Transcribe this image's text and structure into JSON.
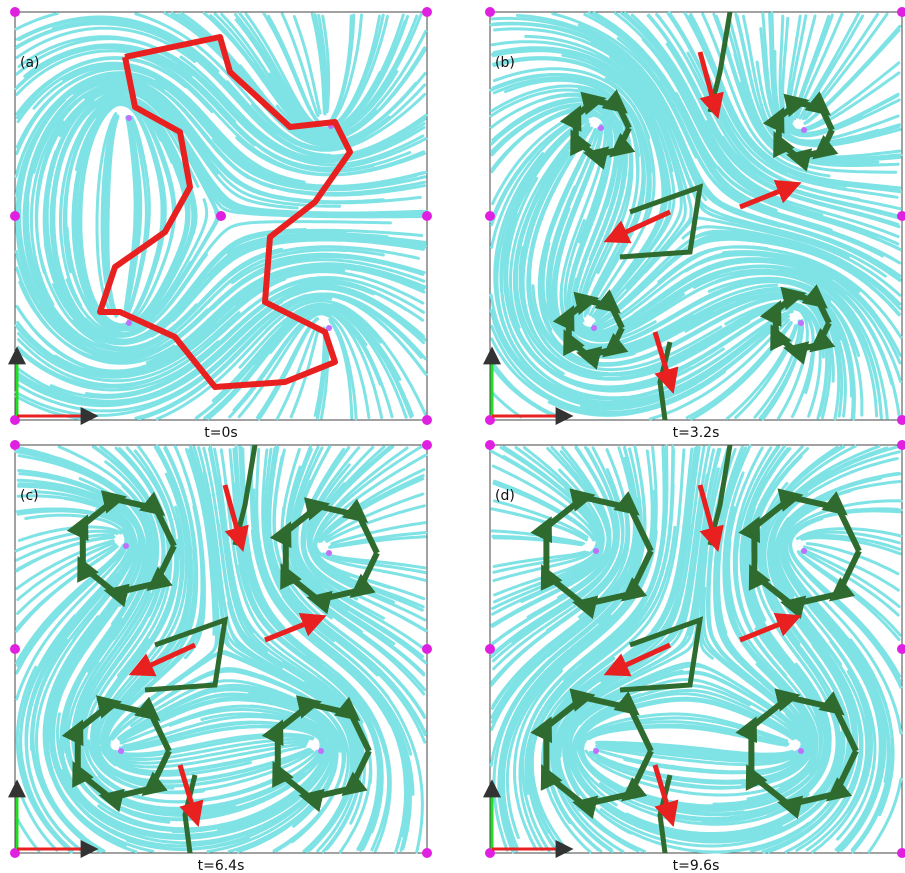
{
  "panels": [
    {
      "label": "(a)",
      "caption": "t=0s"
    },
    {
      "label": "(b)",
      "caption": "t=3.2s"
    },
    {
      "label": "(c)",
      "caption": "t=6.4s"
    },
    {
      "label": "(d)",
      "caption": "t=9.6s"
    }
  ]
}
